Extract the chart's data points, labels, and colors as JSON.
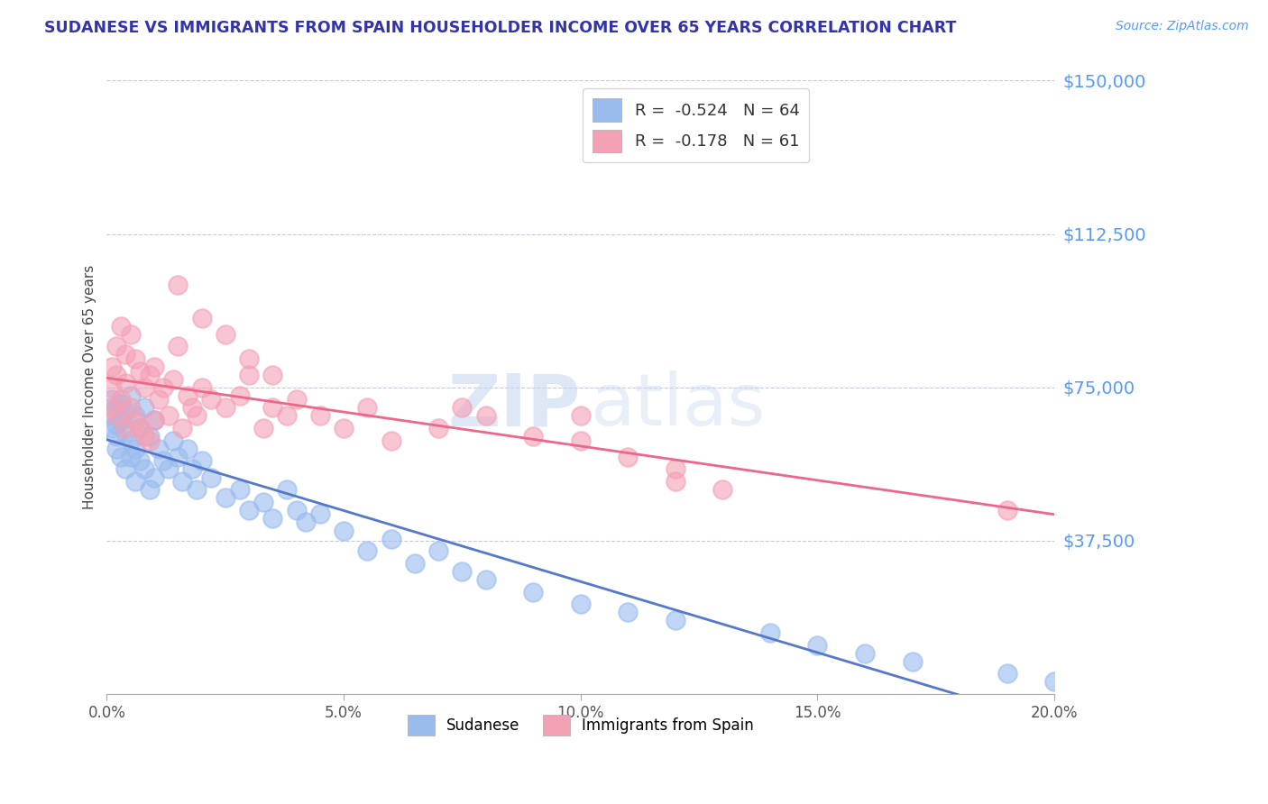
{
  "title": "SUDANESE VS IMMIGRANTS FROM SPAIN HOUSEHOLDER INCOME OVER 65 YEARS CORRELATION CHART",
  "source": "Source: ZipAtlas.com",
  "ylabel": "Householder Income Over 65 years",
  "xlim": [
    0.0,
    0.2
  ],
  "ylim": [
    0,
    150000
  ],
  "yticks": [
    0,
    37500,
    75000,
    112500,
    150000
  ],
  "ytick_labels": [
    "",
    "$37,500",
    "$75,000",
    "$112,500",
    "$150,000"
  ],
  "xtick_labels": [
    "0.0%",
    "5.0%",
    "10.0%",
    "15.0%",
    "20.0%"
  ],
  "xticks": [
    0.0,
    0.05,
    0.1,
    0.15,
    0.2
  ],
  "sudanese_color": "#99bbee",
  "spain_color": "#f4a0b5",
  "sudanese_line_color": "#5577cc",
  "spain_line_color": "#ee6688",
  "sudanese_R": -0.524,
  "sudanese_N": 64,
  "spain_R": -0.178,
  "spain_N": 61,
  "legend_labels": [
    "Sudanese",
    "Immigrants from Spain"
  ],
  "title_color": "#3333aa",
  "axis_color": "#5599ff",
  "sudanese_x": [
    0.001,
    0.001,
    0.001,
    0.002,
    0.002,
    0.002,
    0.002,
    0.003,
    0.003,
    0.003,
    0.004,
    0.004,
    0.004,
    0.005,
    0.005,
    0.005,
    0.006,
    0.006,
    0.006,
    0.007,
    0.007,
    0.008,
    0.008,
    0.009,
    0.009,
    0.01,
    0.01,
    0.011,
    0.012,
    0.013,
    0.014,
    0.015,
    0.016,
    0.017,
    0.018,
    0.019,
    0.02,
    0.022,
    0.025,
    0.028,
    0.03,
    0.033,
    0.035,
    0.038,
    0.04,
    0.042,
    0.045,
    0.05,
    0.055,
    0.06,
    0.065,
    0.07,
    0.075,
    0.08,
    0.09,
    0.1,
    0.11,
    0.12,
    0.14,
    0.15,
    0.16,
    0.17,
    0.19,
    0.2
  ],
  "sudanese_y": [
    72000,
    68000,
    65000,
    70000,
    66000,
    63000,
    60000,
    71000,
    67000,
    58000,
    69000,
    64000,
    55000,
    73000,
    62000,
    58000,
    68000,
    60000,
    52000,
    65000,
    57000,
    70000,
    55000,
    63000,
    50000,
    67000,
    53000,
    60000,
    57000,
    55000,
    62000,
    58000,
    52000,
    60000,
    55000,
    50000,
    57000,
    53000,
    48000,
    50000,
    45000,
    47000,
    43000,
    50000,
    45000,
    42000,
    44000,
    40000,
    35000,
    38000,
    32000,
    35000,
    30000,
    28000,
    25000,
    22000,
    20000,
    18000,
    15000,
    12000,
    10000,
    8000,
    5000,
    3000
  ],
  "spain_x": [
    0.001,
    0.001,
    0.001,
    0.002,
    0.002,
    0.002,
    0.003,
    0.003,
    0.004,
    0.004,
    0.004,
    0.005,
    0.005,
    0.006,
    0.006,
    0.007,
    0.007,
    0.008,
    0.008,
    0.009,
    0.009,
    0.01,
    0.01,
    0.011,
    0.012,
    0.013,
    0.014,
    0.015,
    0.016,
    0.017,
    0.018,
    0.019,
    0.02,
    0.022,
    0.025,
    0.028,
    0.03,
    0.033,
    0.035,
    0.038,
    0.04,
    0.045,
    0.05,
    0.055,
    0.06,
    0.07,
    0.075,
    0.08,
    0.09,
    0.1,
    0.11,
    0.12,
    0.13,
    0.015,
    0.02,
    0.025,
    0.03,
    0.035,
    0.19,
    0.1,
    0.12
  ],
  "spain_y": [
    80000,
    75000,
    70000,
    85000,
    78000,
    68000,
    90000,
    72000,
    83000,
    76000,
    65000,
    88000,
    70000,
    82000,
    67000,
    79000,
    65000,
    75000,
    63000,
    78000,
    62000,
    80000,
    67000,
    72000,
    75000,
    68000,
    77000,
    85000,
    65000,
    73000,
    70000,
    68000,
    75000,
    72000,
    70000,
    73000,
    78000,
    65000,
    70000,
    68000,
    72000,
    68000,
    65000,
    70000,
    62000,
    65000,
    70000,
    68000,
    63000,
    62000,
    58000,
    55000,
    50000,
    100000,
    92000,
    88000,
    82000,
    78000,
    45000,
    68000,
    52000
  ]
}
